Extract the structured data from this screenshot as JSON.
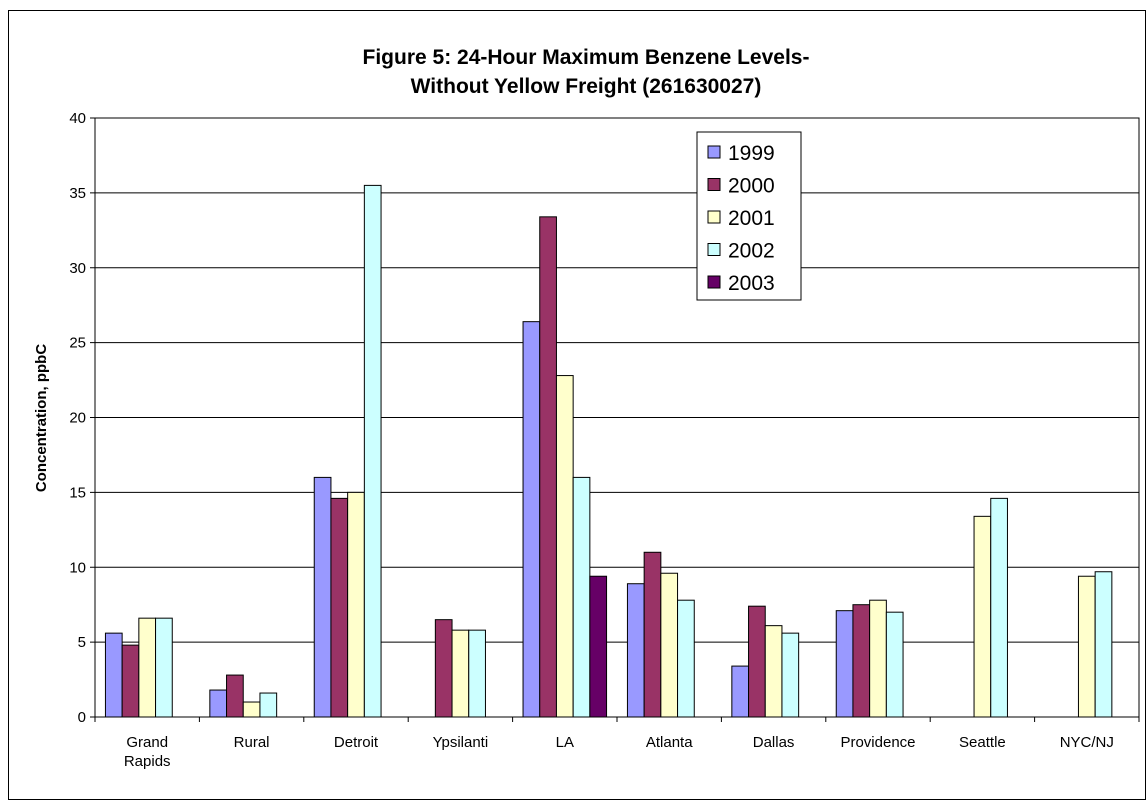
{
  "chart_data": {
    "type": "bar",
    "title_lines": [
      "Figure 5: 24-Hour Maximum Benzene Levels-",
      "Without Yellow Freight (261630027)"
    ],
    "xlabel": "",
    "ylabel": "Concentration, ppbC",
    "ylim": [
      0,
      40
    ],
    "yticks": [
      "0",
      "5",
      "10",
      "15",
      "20",
      "25",
      "30",
      "35",
      "40"
    ],
    "grid": true,
    "legend_position": "top-center",
    "categories": [
      [
        "Grand",
        "Rapids"
      ],
      [
        "Rural"
      ],
      [
        "Detroit"
      ],
      [
        "Ypsilanti"
      ],
      [
        "LA"
      ],
      [
        "Atlanta"
      ],
      [
        "Dallas"
      ],
      [
        "Providence"
      ],
      [
        "Seattle"
      ],
      [
        "NYC/NJ"
      ]
    ],
    "series": [
      {
        "name": "1999",
        "color": "#9999ff",
        "values": [
          5.6,
          1.8,
          16.0,
          null,
          26.4,
          8.9,
          3.4,
          7.1,
          null,
          null
        ]
      },
      {
        "name": "2000",
        "color": "#993366",
        "values": [
          4.8,
          2.8,
          14.6,
          6.5,
          33.4,
          11.0,
          7.4,
          7.5,
          null,
          null
        ]
      },
      {
        "name": "2001",
        "color": "#ffffcc",
        "values": [
          6.6,
          1.0,
          15.0,
          5.8,
          22.8,
          9.6,
          6.1,
          7.8,
          13.4,
          9.4
        ]
      },
      {
        "name": "2002",
        "color": "#ccffff",
        "values": [
          6.6,
          1.6,
          35.5,
          5.8,
          16.0,
          7.8,
          5.6,
          7.0,
          14.6,
          9.7
        ]
      },
      {
        "name": "2003",
        "color": "#660066",
        "values": [
          null,
          null,
          null,
          null,
          9.4,
          null,
          null,
          null,
          null,
          null
        ]
      }
    ]
  }
}
